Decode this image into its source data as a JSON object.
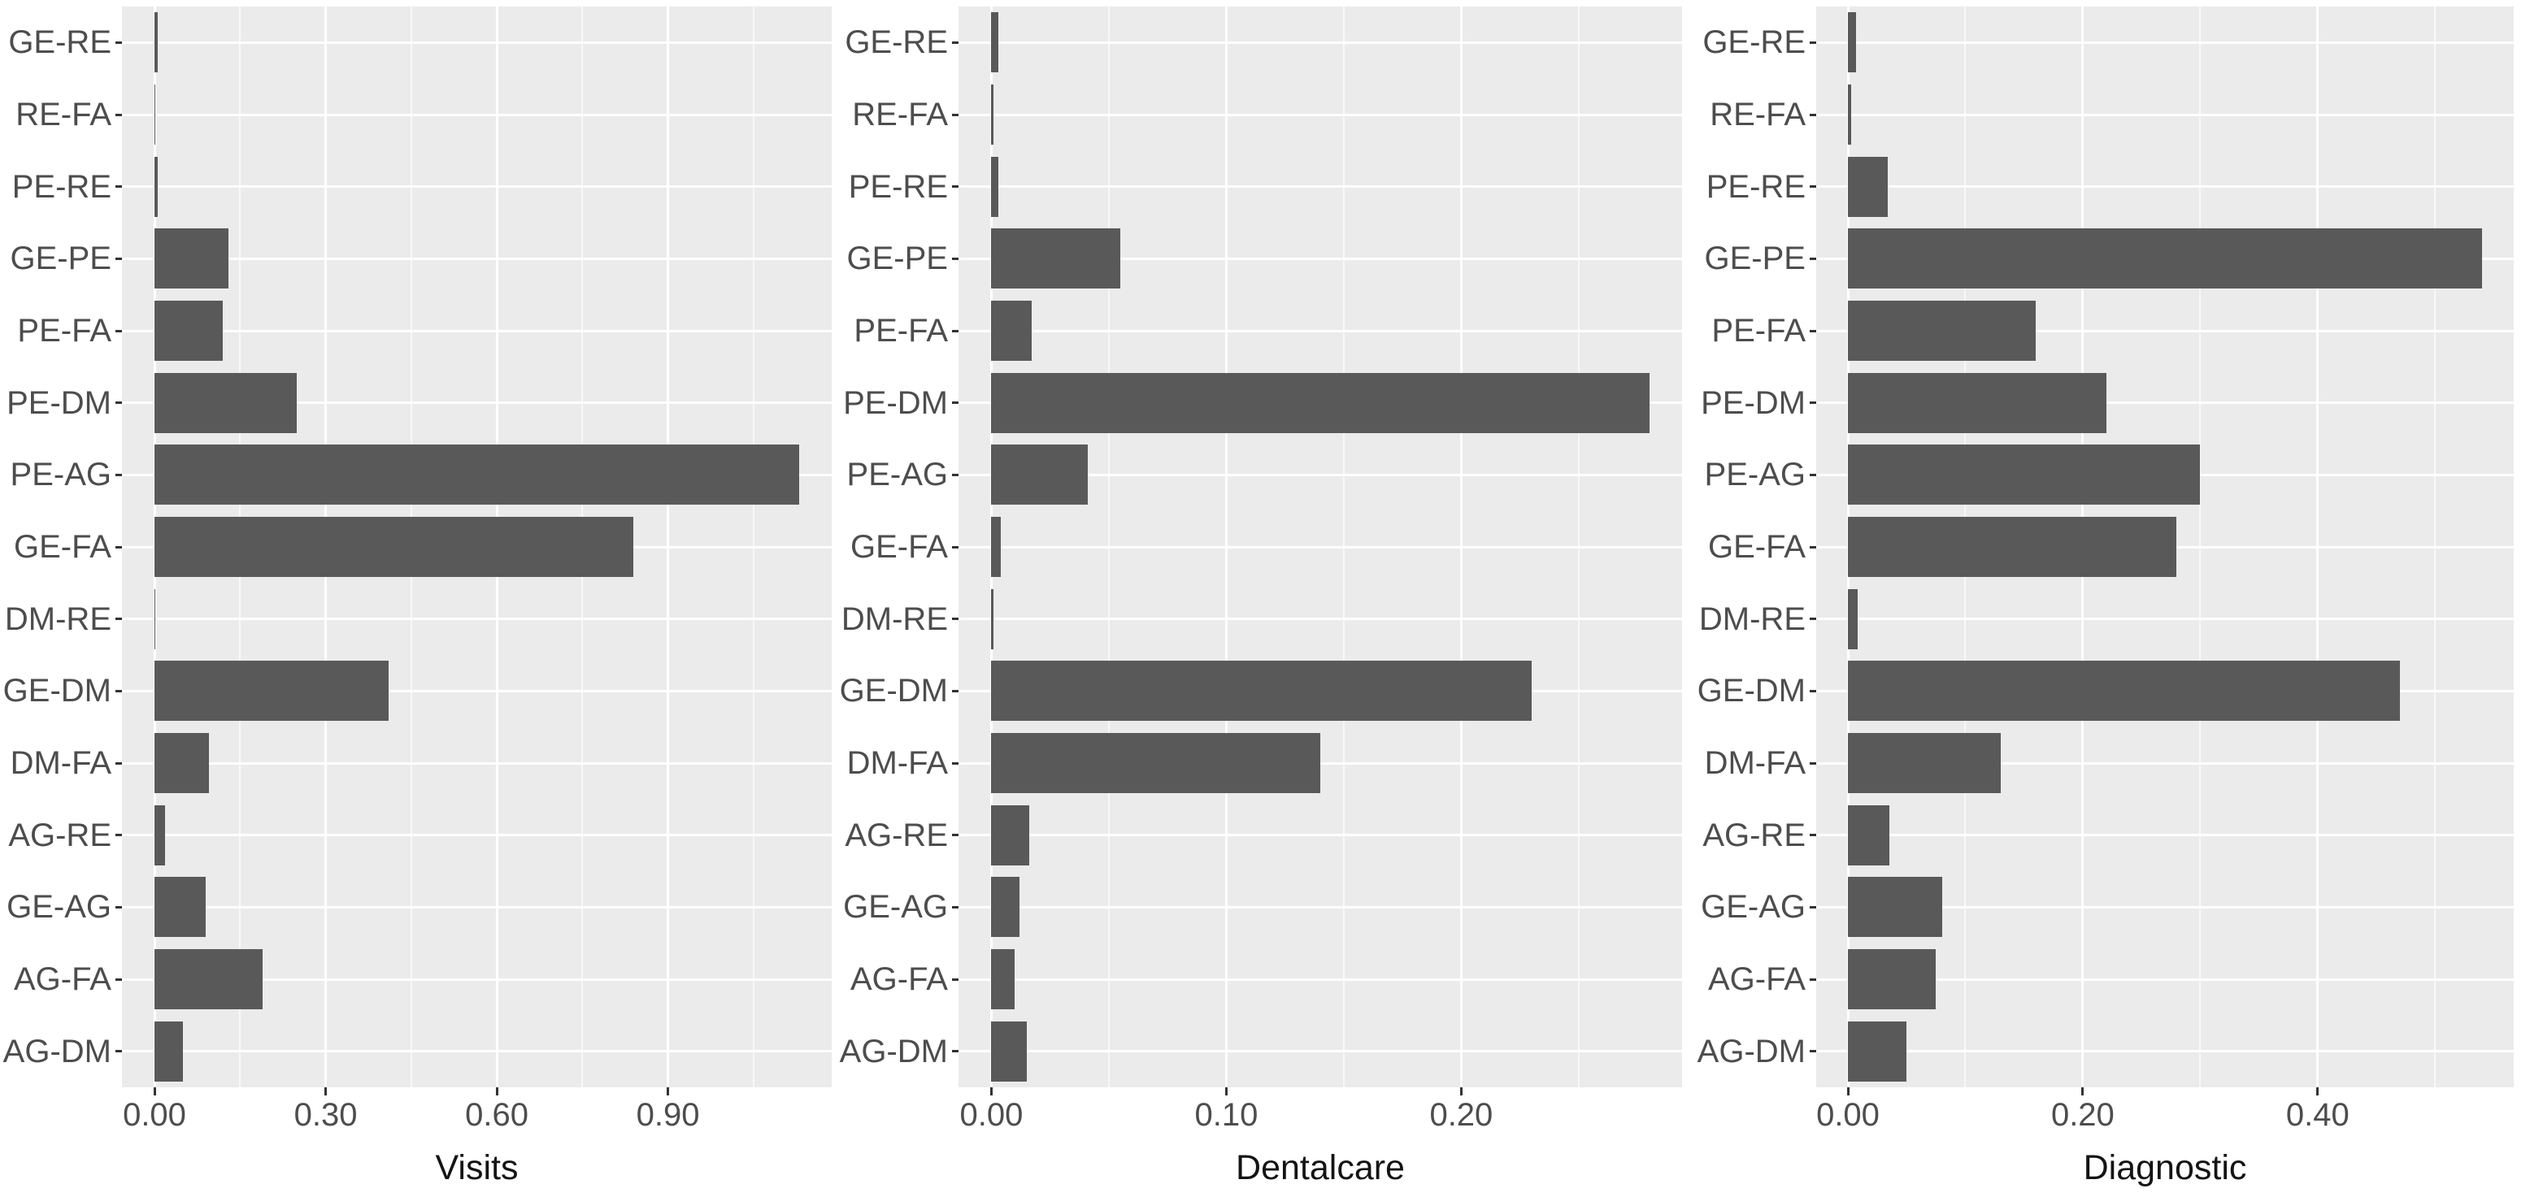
{
  "colors": {
    "bar_fill": "#595959",
    "panel_background": "#EBEBEB",
    "grid_major": "#FFFFFF",
    "axis_text": "#4d4d4d",
    "axis_title": "#141414"
  },
  "chart_data": [
    {
      "type": "bar",
      "orientation": "horizontal",
      "title": "",
      "xlabel": "Visits",
      "ylabel": "",
      "legend": false,
      "grid": true,
      "categories": [
        "GE-RE",
        "RE-FA",
        "PE-RE",
        "GE-PE",
        "PE-FA",
        "PE-DM",
        "PE-AG",
        "GE-FA",
        "DM-RE",
        "GE-DM",
        "DM-FA",
        "AG-RE",
        "GE-AG",
        "AG-FA",
        "AG-DM"
      ],
      "values": [
        0.006,
        0.001,
        0.005,
        0.13,
        0.12,
        0.25,
        1.13,
        0.84,
        0.002,
        0.41,
        0.095,
        0.018,
        0.09,
        0.19,
        0.05
      ],
      "x_ticks": [
        0,
        0.3,
        0.6,
        0.9
      ],
      "x_tick_labels": [
        "0.00",
        "0.30",
        "0.60",
        "0.90"
      ],
      "x_minor_ticks": [
        0.15,
        0.45,
        0.75,
        1.05
      ],
      "xlim": [
        -0.057,
        1.187
      ]
    },
    {
      "type": "bar",
      "orientation": "horizontal",
      "title": "",
      "xlabel": "Dentalcare",
      "ylabel": "",
      "legend": false,
      "grid": true,
      "categories": [
        "GE-RE",
        "RE-FA",
        "PE-RE",
        "GE-PE",
        "PE-FA",
        "PE-DM",
        "PE-AG",
        "GE-FA",
        "DM-RE",
        "GE-DM",
        "DM-FA",
        "AG-RE",
        "GE-AG",
        "AG-FA",
        "AG-DM"
      ],
      "values": [
        0.003,
        0.001,
        0.003,
        0.055,
        0.017,
        0.28,
        0.041,
        0.004,
        0.001,
        0.23,
        0.14,
        0.016,
        0.012,
        0.01,
        0.015
      ],
      "x_ticks": [
        0,
        0.1,
        0.2
      ],
      "x_tick_labels": [
        "0.00",
        "0.10",
        "0.20"
      ],
      "x_minor_ticks": [
        0.05,
        0.15,
        0.25
      ],
      "xlim": [
        -0.014,
        0.294
      ]
    },
    {
      "type": "bar",
      "orientation": "horizontal",
      "title": "",
      "xlabel": "Diagnostic",
      "ylabel": "",
      "legend": false,
      "grid": true,
      "categories": [
        "GE-RE",
        "RE-FA",
        "PE-RE",
        "GE-PE",
        "PE-FA",
        "PE-DM",
        "PE-AG",
        "GE-FA",
        "DM-RE",
        "GE-DM",
        "DM-FA",
        "AG-RE",
        "GE-AG",
        "AG-FA",
        "AG-DM"
      ],
      "values": [
        0.007,
        0.003,
        0.034,
        0.54,
        0.16,
        0.22,
        0.3,
        0.28,
        0.008,
        0.47,
        0.13,
        0.035,
        0.08,
        0.075,
        0.05
      ],
      "x_ticks": [
        0,
        0.2,
        0.4
      ],
      "x_tick_labels": [
        "0.00",
        "0.20",
        "0.40"
      ],
      "x_minor_ticks": [
        0.1,
        0.3,
        0.5
      ],
      "xlim": [
        -0.027,
        0.567
      ]
    }
  ]
}
